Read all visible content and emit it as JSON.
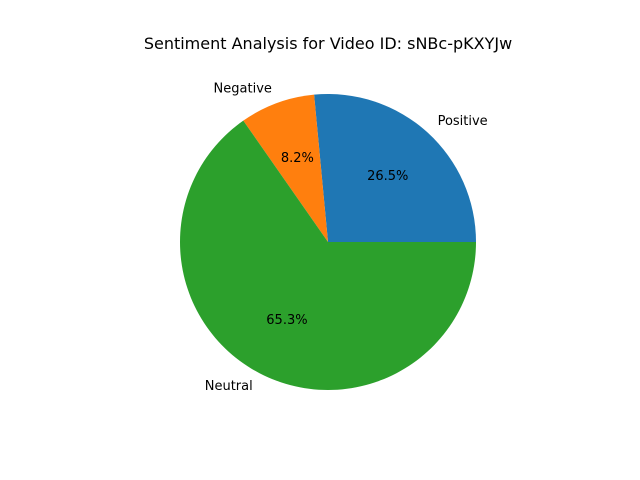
{
  "chart_data": {
    "type": "pie",
    "title": "Sentiment Analysis for Video ID: sNBc-pKXYJw",
    "categories": [
      "Positive",
      "Negative",
      "Neutral"
    ],
    "values": [
      26.5,
      8.2,
      65.3
    ],
    "percent_labels": [
      "26.5%",
      "8.2%",
      "65.3%"
    ],
    "colors": [
      "#1f77b4",
      "#ff7f0e",
      "#2ca02c"
    ],
    "start_angle_deg": 0,
    "direction": "counterclockwise",
    "legend": "none"
  }
}
